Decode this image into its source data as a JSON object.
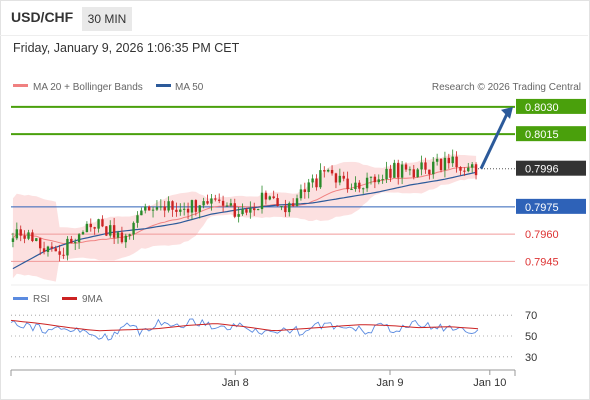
{
  "header": {
    "symbol": "USD/CHF",
    "timeframe": "30 MIN",
    "timestamp": "Friday, January 9, 2026 1:06:35 PM CET"
  },
  "credit": "Research © 2026 Trading Central",
  "colors": {
    "green": "#4aa00c",
    "blue": "#2e62b8",
    "red": "#e05555",
    "current": "#333333",
    "ma20": "#f08080",
    "ma50": "#2c5a9a",
    "band": "#fbdada",
    "candle_up": "#2a8a2a",
    "candle_down": "#cc2222",
    "rsi": "#5b8be0",
    "rsi_ma": "#cc2222"
  },
  "chart_data": [
    {
      "type": "line",
      "title": "",
      "legend": [
        {
          "label": "MA 20 + Bollinger Bands",
          "color": "#f08080"
        },
        {
          "label": "MA 50",
          "color": "#2c5a9a"
        }
      ],
      "price_range": [
        0.7932,
        0.8036
      ],
      "levels": [
        {
          "label": "0.8030",
          "value": 0.803,
          "kind": "resistance"
        },
        {
          "label": "0.8015",
          "value": 0.8015,
          "kind": "resistance"
        },
        {
          "label": "0.7996",
          "value": 0.7996,
          "kind": "current"
        },
        {
          "label": "0.7975",
          "value": 0.7975,
          "kind": "pivot"
        },
        {
          "label": "0.7960",
          "value": 0.796,
          "kind": "support"
        },
        {
          "label": "0.7945",
          "value": 0.7945,
          "kind": "support"
        }
      ],
      "price_anchors": [
        0.796,
        0.7959,
        0.7953,
        0.7951,
        0.7958,
        0.7967,
        0.7963,
        0.7957,
        0.7971,
        0.7978,
        0.7976,
        0.7975,
        0.7978,
        0.7976,
        0.7973,
        0.7976,
        0.798,
        0.7974,
        0.798,
        0.799,
        0.7993,
        0.7988,
        0.7989,
        0.7993,
        0.7995,
        0.7995,
        0.7996,
        0.7999,
        0.7998,
        0.7996
      ],
      "ma50_anchors": [
        0.7941,
        0.7951,
        0.7957,
        0.7961,
        0.7963,
        0.7966,
        0.7971,
        0.7974,
        0.7976,
        0.7977,
        0.798,
        0.7983,
        0.7987,
        0.799,
        0.7994
      ],
      "forecast": {
        "from": 0.7996,
        "to": 0.803
      },
      "xticks": [
        "Jan 8",
        "Jan 9",
        "Jan 10"
      ],
      "xtick_positions": [
        0.445,
        0.752,
        0.95
      ]
    },
    {
      "type": "line",
      "title": "",
      "legend": [
        {
          "label": "RSI",
          "color": "#5b8be0"
        },
        {
          "label": "9MA",
          "color": "#cc2222"
        }
      ],
      "ylim": [
        25,
        75
      ],
      "yticks": [
        "70",
        "50",
        "30"
      ],
      "ytick_values": [
        70,
        50,
        30
      ],
      "rsi_anchors": [
        65,
        61,
        57,
        55,
        56,
        51,
        49,
        59,
        55,
        62,
        60,
        63,
        64,
        58,
        60,
        57,
        52,
        57,
        55,
        62,
        58,
        60,
        56,
        59,
        57,
        61,
        59,
        58,
        56,
        54
      ],
      "rsi_ma_anchors": [
        65,
        62,
        58,
        55,
        56,
        57,
        60,
        62,
        59,
        55,
        57,
        59,
        61,
        60,
        58,
        59,
        57
      ]
    }
  ]
}
